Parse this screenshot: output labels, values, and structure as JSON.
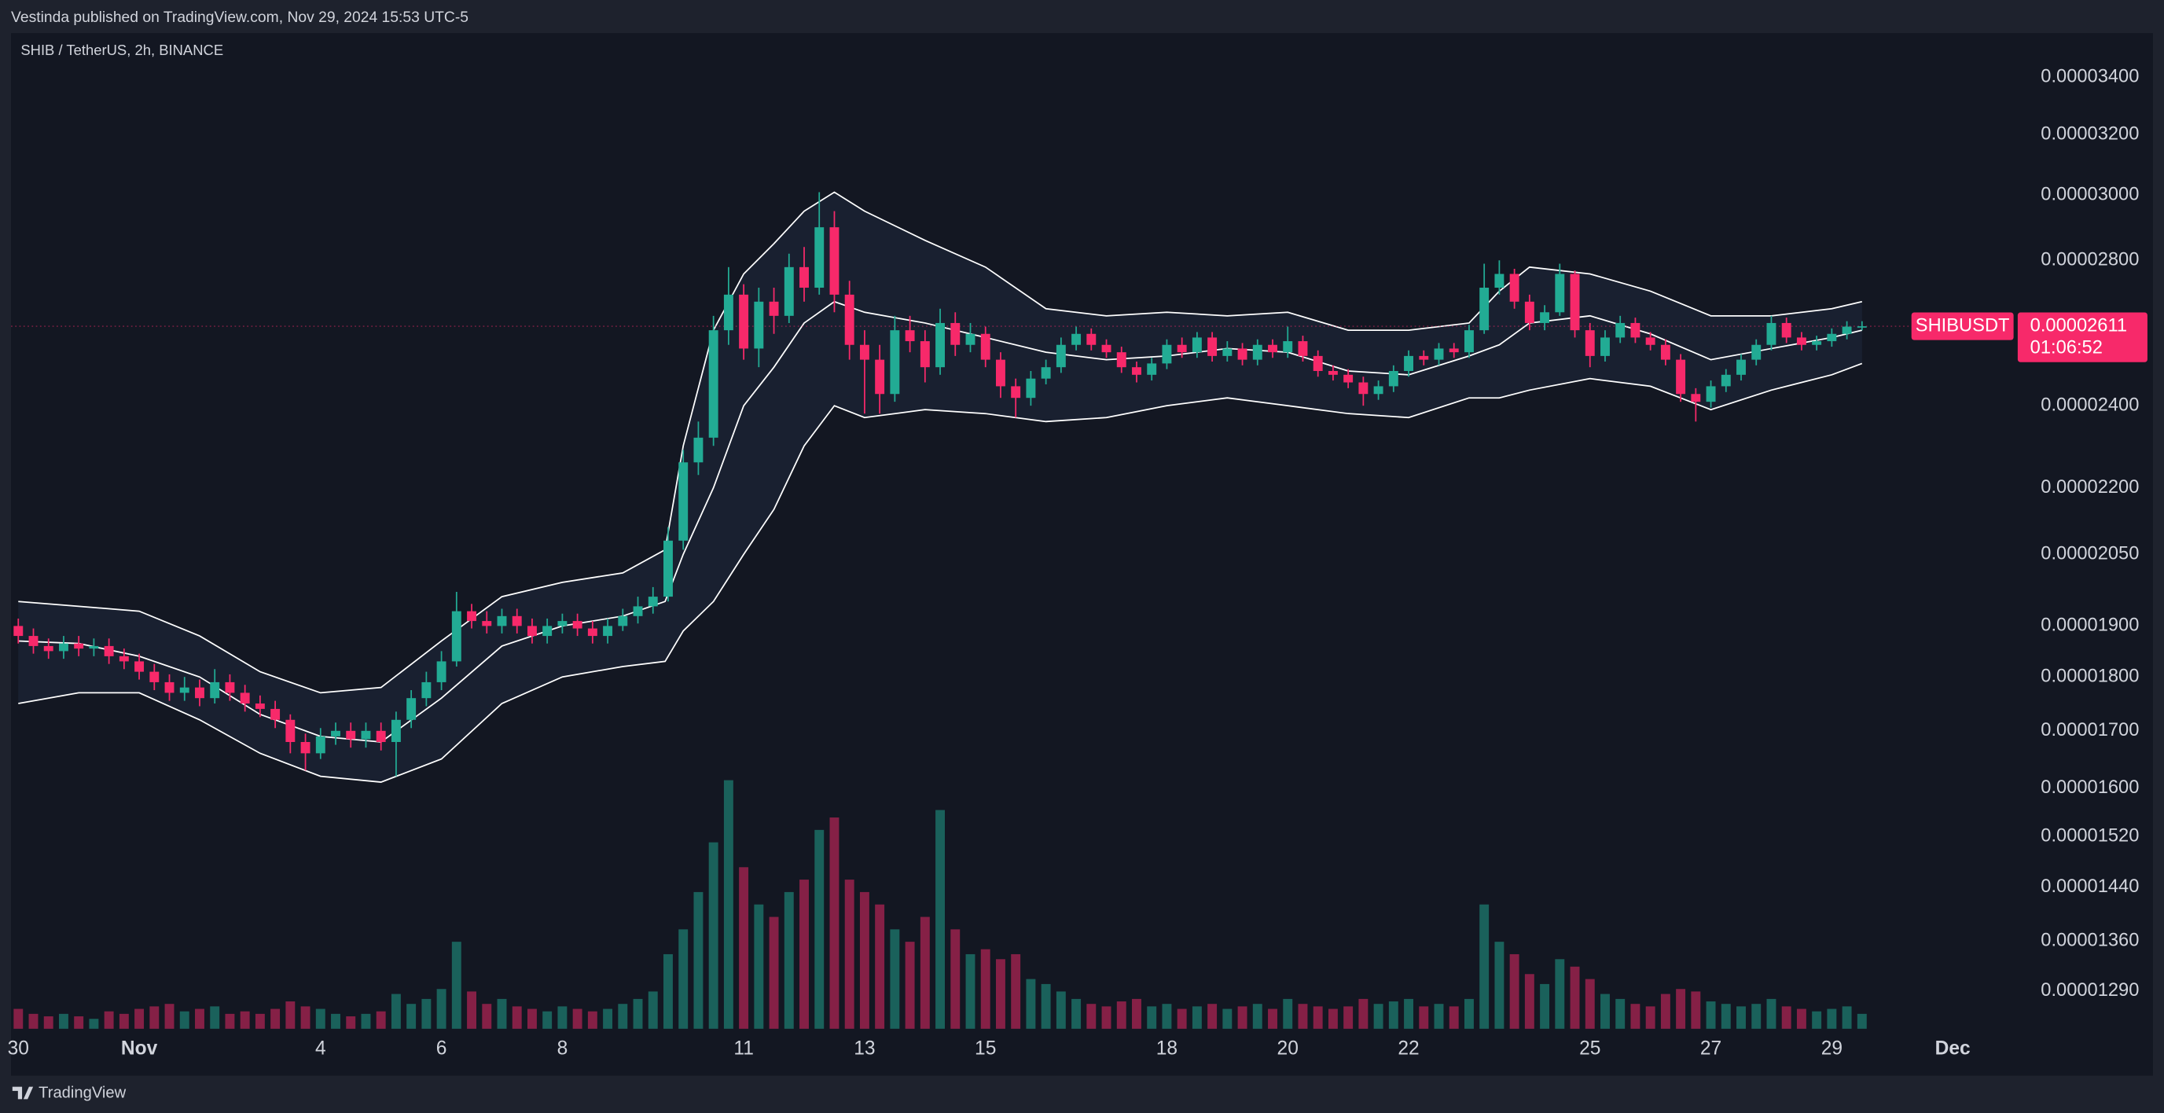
{
  "header": {
    "publisher": "Vestinda published on TradingView.com, Nov 29, 2024 15:53 UTC-5"
  },
  "footer": {
    "logo": "TradingView"
  },
  "chart_data": {
    "type": "candlestick",
    "title": "SHIB / TetherUS, 2h, BINANCE",
    "log_scale": true,
    "up_color": "#22ab94",
    "down_color": "#f7296a",
    "band_color": "#ffffff",
    "xlim": [
      -2.12,
      31.03
    ],
    "xticks": [
      {
        "value": -2,
        "label": "30"
      },
      {
        "value": 0,
        "label": "Nov"
      },
      {
        "value": 3,
        "label": "4"
      },
      {
        "value": 5,
        "label": "6"
      },
      {
        "value": 7,
        "label": "8"
      },
      {
        "value": 10,
        "label": "11"
      },
      {
        "value": 12,
        "label": "13"
      },
      {
        "value": 14,
        "label": "15"
      },
      {
        "value": 17,
        "label": "18"
      },
      {
        "value": 19,
        "label": "20"
      },
      {
        "value": 21,
        "label": "22"
      },
      {
        "value": 24,
        "label": "25"
      },
      {
        "value": 26,
        "label": "27"
      },
      {
        "value": 28,
        "label": "29"
      },
      {
        "value": 30,
        "label": "Dec"
      }
    ],
    "ylim": [
      1.234e-05,
      3.563e-05
    ],
    "yticks": [
      {
        "value": 3.4e-05,
        "label": "0.00003400"
      },
      {
        "value": 3.2e-05,
        "label": "0.00003200"
      },
      {
        "value": 3e-05,
        "label": "0.00003000"
      },
      {
        "value": 2.8e-05,
        "label": "0.00002800"
      },
      {
        "value": 2.4e-05,
        "label": "0.00002400"
      },
      {
        "value": 2.2e-05,
        "label": "0.00002200"
      },
      {
        "value": 2.05e-05,
        "label": "0.00002050"
      },
      {
        "value": 1.9e-05,
        "label": "0.00001900"
      },
      {
        "value": 1.8e-05,
        "label": "0.00001800"
      },
      {
        "value": 1.7e-05,
        "label": "0.00001700"
      },
      {
        "value": 1.6e-05,
        "label": "0.00001600"
      },
      {
        "value": 1.52e-05,
        "label": "0.00001520"
      },
      {
        "value": 1.44e-05,
        "label": "0.00001440"
      },
      {
        "value": 1.36e-05,
        "label": "0.00001360"
      },
      {
        "value": 1.29e-05,
        "label": "0.00001290"
      }
    ],
    "vlim": [
      0,
      100
    ],
    "last_price": {
      "value": 2.611e-05,
      "label": "0.00002611",
      "symbol": "SHIBUSDT",
      "countdown": "01:06:52"
    },
    "x": [
      -2,
      -1.75,
      -1.5,
      -1.25,
      -1,
      -0.75,
      -0.5,
      -0.25,
      0,
      0.25,
      0.5,
      0.75,
      1,
      1.25,
      1.5,
      1.75,
      2,
      2.25,
      2.5,
      2.75,
      3,
      3.25,
      3.5,
      3.75,
      4,
      4.25,
      4.5,
      4.75,
      5,
      5.25,
      5.5,
      5.75,
      6,
      6.25,
      6.5,
      6.75,
      7,
      7.25,
      7.5,
      7.75,
      8,
      8.25,
      8.5,
      8.75,
      9,
      9.25,
      9.5,
      9.75,
      10,
      10.25,
      10.5,
      10.75,
      11,
      11.25,
      11.5,
      11.75,
      12,
      12.25,
      12.5,
      12.75,
      13,
      13.25,
      13.5,
      13.75,
      14,
      14.25,
      14.5,
      14.75,
      15,
      15.25,
      15.5,
      15.75,
      16,
      16.25,
      16.5,
      16.75,
      17,
      17.25,
      17.5,
      17.75,
      18,
      18.25,
      18.5,
      18.75,
      19,
      19.25,
      19.5,
      19.75,
      20,
      20.25,
      20.5,
      20.75,
      21,
      21.25,
      21.5,
      21.75,
      22,
      22.25,
      22.5,
      22.75,
      23,
      23.25,
      23.5,
      23.75,
      24,
      24.25,
      24.5,
      24.75,
      25,
      25.25,
      25.5,
      25.75,
      26,
      26.25,
      26.5,
      26.75,
      27,
      27.25,
      27.5,
      27.75,
      28,
      28.25,
      28.5
    ],
    "open": [
      1.9e-05,
      1.88e-05,
      1.86e-05,
      1.85e-05,
      1.865e-05,
      1.855e-05,
      1.86e-05,
      1.84e-05,
      1.83e-05,
      1.81e-05,
      1.79e-05,
      1.77e-05,
      1.78e-05,
      1.76e-05,
      1.79e-05,
      1.77e-05,
      1.75e-05,
      1.74e-05,
      1.72e-05,
      1.68e-05,
      1.66e-05,
      1.69e-05,
      1.7e-05,
      1.685e-05,
      1.7e-05,
      1.68e-05,
      1.72e-05,
      1.76e-05,
      1.79e-05,
      1.83e-05,
      1.93e-05,
      1.91e-05,
      1.9e-05,
      1.92e-05,
      1.9e-05,
      1.88e-05,
      1.9e-05,
      1.91e-05,
      1.895e-05,
      1.88e-05,
      1.9e-05,
      1.92e-05,
      1.94e-05,
      1.96e-05,
      2.08e-05,
      2.26e-05,
      2.32e-05,
      2.6e-05,
      2.7e-05,
      2.55e-05,
      2.68e-05,
      2.64e-05,
      2.78e-05,
      2.72e-05,
      2.9e-05,
      2.7e-05,
      2.56e-05,
      2.52e-05,
      2.43e-05,
      2.6e-05,
      2.57e-05,
      2.5e-05,
      2.62e-05,
      2.56e-05,
      2.59e-05,
      2.52e-05,
      2.45e-05,
      2.42e-05,
      2.47e-05,
      2.5e-05,
      2.56e-05,
      2.59e-05,
      2.56e-05,
      2.54e-05,
      2.5e-05,
      2.48e-05,
      2.51e-05,
      2.56e-05,
      2.54e-05,
      2.58e-05,
      2.53e-05,
      2.55e-05,
      2.52e-05,
      2.56e-05,
      2.54e-05,
      2.57e-05,
      2.53e-05,
      2.49e-05,
      2.48e-05,
      2.46e-05,
      2.43e-05,
      2.45e-05,
      2.49e-05,
      2.53e-05,
      2.52e-05,
      2.55e-05,
      2.54e-05,
      2.6e-05,
      2.72e-05,
      2.76e-05,
      2.68e-05,
      2.62e-05,
      2.65e-05,
      2.76e-05,
      2.6e-05,
      2.53e-05,
      2.58e-05,
      2.62e-05,
      2.58e-05,
      2.56e-05,
      2.52e-05,
      2.43e-05,
      2.41e-05,
      2.45e-05,
      2.48e-05,
      2.52e-05,
      2.56e-05,
      2.62e-05,
      2.58e-05,
      2.56e-05,
      2.57e-05,
      2.59e-05,
      2.61e-05
    ],
    "high": [
      1.915e-05,
      1.895e-05,
      1.875e-05,
      1.88e-05,
      1.88e-05,
      1.875e-05,
      1.875e-05,
      1.855e-05,
      1.845e-05,
      1.825e-05,
      1.805e-05,
      1.8e-05,
      1.795e-05,
      1.815e-05,
      1.805e-05,
      1.785e-05,
      1.765e-05,
      1.755e-05,
      1.73e-05,
      1.695e-05,
      1.705e-05,
      1.715e-05,
      1.715e-05,
      1.715e-05,
      1.715e-05,
      1.735e-05,
      1.775e-05,
      1.81e-05,
      1.85e-05,
      1.97e-05,
      1.945e-05,
      1.93e-05,
      1.935e-05,
      1.935e-05,
      1.915e-05,
      1.915e-05,
      1.925e-05,
      1.925e-05,
      1.91e-05,
      1.915e-05,
      1.935e-05,
      1.96e-05,
      1.98e-05,
      2.11e-05,
      2.29e-05,
      2.36e-05,
      2.64e-05,
      2.78e-05,
      2.73e-05,
      2.72e-05,
      2.72e-05,
      2.82e-05,
      2.84e-05,
      3.01e-05,
      2.95e-05,
      2.74e-05,
      2.6e-05,
      2.56e-05,
      2.64e-05,
      2.64e-05,
      2.6e-05,
      2.66e-05,
      2.65e-05,
      2.62e-05,
      2.61e-05,
      2.54e-05,
      2.47e-05,
      2.49e-05,
      2.52e-05,
      2.58e-05,
      2.61e-05,
      2.605e-05,
      2.575e-05,
      2.555e-05,
      2.515e-05,
      2.525e-05,
      2.575e-05,
      2.58e-05,
      2.595e-05,
      2.595e-05,
      2.57e-05,
      2.565e-05,
      2.575e-05,
      2.575e-05,
      2.61e-05,
      2.585e-05,
      2.545e-05,
      2.505e-05,
      2.495e-05,
      2.475e-05,
      2.465e-05,
      2.505e-05,
      2.545e-05,
      2.545e-05,
      2.565e-05,
      2.565e-05,
      2.615e-05,
      2.79e-05,
      2.8e-05,
      2.775e-05,
      2.7e-05,
      2.67e-05,
      2.79e-05,
      2.77e-05,
      2.62e-05,
      2.6e-05,
      2.64e-05,
      2.635e-05,
      2.595e-05,
      2.575e-05,
      2.535e-05,
      2.445e-05,
      2.465e-05,
      2.495e-05,
      2.535e-05,
      2.575e-05,
      2.64e-05,
      2.635e-05,
      2.595e-05,
      2.585e-05,
      2.605e-05,
      2.625e-05,
      2.625e-05
    ],
    "low": [
      1.865e-05,
      1.845e-05,
      1.835e-05,
      1.835e-05,
      1.84e-05,
      1.84e-05,
      1.825e-05,
      1.815e-05,
      1.795e-05,
      1.775e-05,
      1.755e-05,
      1.755e-05,
      1.745e-05,
      1.75e-05,
      1.755e-05,
      1.735e-05,
      1.725e-05,
      1.705e-05,
      1.66e-05,
      1.63e-05,
      1.65e-05,
      1.675e-05,
      1.67e-05,
      1.67e-05,
      1.665e-05,
      1.62e-05,
      1.705e-05,
      1.745e-05,
      1.775e-05,
      1.82e-05,
      1.895e-05,
      1.885e-05,
      1.885e-05,
      1.885e-05,
      1.865e-05,
      1.865e-05,
      1.885e-05,
      1.88e-05,
      1.865e-05,
      1.865e-05,
      1.89e-05,
      1.905e-05,
      1.925e-05,
      1.95e-05,
      2.06e-05,
      2.23e-05,
      2.3e-05,
      2.56e-05,
      2.52e-05,
      2.5e-05,
      2.59e-05,
      2.62e-05,
      2.68e-05,
      2.7e-05,
      2.65e-05,
      2.52e-05,
      2.38e-05,
      2.38e-05,
      2.41e-05,
      2.54e-05,
      2.46e-05,
      2.48e-05,
      2.53e-05,
      2.54e-05,
      2.5e-05,
      2.42e-05,
      2.37e-05,
      2.4e-05,
      2.455e-05,
      2.485e-05,
      2.545e-05,
      2.545e-05,
      2.525e-05,
      2.485e-05,
      2.46e-05,
      2.465e-05,
      2.495e-05,
      2.525e-05,
      2.525e-05,
      2.515e-05,
      2.515e-05,
      2.505e-05,
      2.505e-05,
      2.525e-05,
      2.525e-05,
      2.515e-05,
      2.475e-05,
      2.465e-05,
      2.445e-05,
      2.4e-05,
      2.415e-05,
      2.435e-05,
      2.475e-05,
      2.505e-05,
      2.505e-05,
      2.525e-05,
      2.525e-05,
      2.59e-05,
      2.7e-05,
      2.66e-05,
      2.6e-05,
      2.6e-05,
      2.64e-05,
      2.58e-05,
      2.5e-05,
      2.515e-05,
      2.565e-05,
      2.565e-05,
      2.545e-05,
      2.505e-05,
      2.41e-05,
      2.36e-05,
      2.395e-05,
      2.435e-05,
      2.465e-05,
      2.505e-05,
      2.545e-05,
      2.565e-05,
      2.545e-05,
      2.545e-05,
      2.555e-05,
      2.575e-05,
      2.6e-05
    ],
    "close": [
      1.88e-05,
      1.86e-05,
      1.85e-05,
      1.865e-05,
      1.855e-05,
      1.86e-05,
      1.84e-05,
      1.83e-05,
      1.81e-05,
      1.79e-05,
      1.77e-05,
      1.78e-05,
      1.76e-05,
      1.79e-05,
      1.77e-05,
      1.75e-05,
      1.74e-05,
      1.72e-05,
      1.68e-05,
      1.66e-05,
      1.69e-05,
      1.7e-05,
      1.685e-05,
      1.7e-05,
      1.68e-05,
      1.72e-05,
      1.76e-05,
      1.79e-05,
      1.83e-05,
      1.93e-05,
      1.91e-05,
      1.9e-05,
      1.92e-05,
      1.9e-05,
      1.88e-05,
      1.9e-05,
      1.91e-05,
      1.895e-05,
      1.88e-05,
      1.9e-05,
      1.92e-05,
      1.94e-05,
      1.96e-05,
      2.08e-05,
      2.26e-05,
      2.32e-05,
      2.6e-05,
      2.7e-05,
      2.55e-05,
      2.68e-05,
      2.64e-05,
      2.78e-05,
      2.72e-05,
      2.9e-05,
      2.7e-05,
      2.56e-05,
      2.52e-05,
      2.43e-05,
      2.6e-05,
      2.57e-05,
      2.5e-05,
      2.62e-05,
      2.56e-05,
      2.59e-05,
      2.52e-05,
      2.45e-05,
      2.42e-05,
      2.47e-05,
      2.5e-05,
      2.56e-05,
      2.59e-05,
      2.56e-05,
      2.54e-05,
      2.5e-05,
      2.48e-05,
      2.51e-05,
      2.56e-05,
      2.54e-05,
      2.58e-05,
      2.53e-05,
      2.55e-05,
      2.52e-05,
      2.56e-05,
      2.54e-05,
      2.57e-05,
      2.53e-05,
      2.49e-05,
      2.48e-05,
      2.46e-05,
      2.43e-05,
      2.45e-05,
      2.49e-05,
      2.53e-05,
      2.52e-05,
      2.55e-05,
      2.54e-05,
      2.6e-05,
      2.72e-05,
      2.76e-05,
      2.68e-05,
      2.62e-05,
      2.65e-05,
      2.76e-05,
      2.6e-05,
      2.53e-05,
      2.58e-05,
      2.62e-05,
      2.58e-05,
      2.56e-05,
      2.52e-05,
      2.43e-05,
      2.41e-05,
      2.45e-05,
      2.48e-05,
      2.52e-05,
      2.56e-05,
      2.62e-05,
      2.58e-05,
      2.56e-05,
      2.57e-05,
      2.59e-05,
      2.61e-05,
      2.611e-05
    ],
    "volume": [
      8,
      6,
      5,
      6,
      5,
      4,
      7,
      6,
      8,
      9,
      10,
      7,
      8,
      9,
      6,
      7,
      6,
      8,
      11,
      9,
      8,
      6,
      5,
      6,
      7,
      14,
      10,
      12,
      16,
      35,
      15,
      10,
      12,
      9,
      8,
      7,
      9,
      8,
      7,
      8,
      10,
      12,
      15,
      30,
      40,
      55,
      75,
      100,
      65,
      50,
      45,
      55,
      60,
      80,
      85,
      60,
      55,
      50,
      40,
      35,
      45,
      88,
      40,
      30,
      32,
      28,
      30,
      20,
      18,
      15,
      12,
      10,
      9,
      11,
      12,
      9,
      10,
      8,
      9,
      10,
      8,
      9,
      10,
      8,
      12,
      10,
      9,
      8,
      9,
      12,
      10,
      11,
      12,
      9,
      10,
      9,
      12,
      50,
      35,
      30,
      22,
      18,
      28,
      25,
      20,
      14,
      12,
      10,
      9,
      14,
      16,
      15,
      11,
      10,
      9,
      10,
      12,
      9,
      8,
      7,
      8,
      9,
      6
    ],
    "bollinger": {
      "x": [
        -2,
        -1,
        0,
        1,
        2,
        3,
        4,
        5,
        6,
        7,
        8,
        8.7,
        9,
        9.5,
        10,
        10.5,
        11,
        11.5,
        12,
        13,
        14,
        15,
        16,
        17,
        18,
        19,
        20,
        21,
        22,
        22.5,
        23,
        24,
        25,
        26,
        27,
        28,
        28.5
      ],
      "upper": [
        1.95e-05,
        1.94e-05,
        1.93e-05,
        1.88e-05,
        1.81e-05,
        1.77e-05,
        1.78e-05,
        1.87e-05,
        1.96e-05,
        1.99e-05,
        2.01e-05,
        2.06e-05,
        2.3e-05,
        2.6e-05,
        2.76e-05,
        2.85e-05,
        2.95e-05,
        3.01e-05,
        2.95e-05,
        2.86e-05,
        2.78e-05,
        2.66e-05,
        2.64e-05,
        2.65e-05,
        2.64e-05,
        2.65e-05,
        2.6e-05,
        2.6e-05,
        2.62e-05,
        2.71e-05,
        2.78e-05,
        2.76e-05,
        2.71e-05,
        2.64e-05,
        2.64e-05,
        2.66e-05,
        2.68e-05
      ],
      "basis": [
        1.87e-05,
        1.865e-05,
        1.84e-05,
        1.8e-05,
        1.73e-05,
        1.69e-05,
        1.68e-05,
        1.76e-05,
        1.86e-05,
        1.9e-05,
        1.92e-05,
        1.95e-05,
        2.05e-05,
        2.2e-05,
        2.4e-05,
        2.5e-05,
        2.62e-05,
        2.68e-05,
        2.65e-05,
        2.62e-05,
        2.58e-05,
        2.54e-05,
        2.52e-05,
        2.53e-05,
        2.55e-05,
        2.54e-05,
        2.49e-05,
        2.48e-05,
        2.53e-05,
        2.56e-05,
        2.62e-05,
        2.64e-05,
        2.59e-05,
        2.52e-05,
        2.55e-05,
        2.58e-05,
        2.6e-05
      ],
      "lower": [
        1.75e-05,
        1.77e-05,
        1.77e-05,
        1.72e-05,
        1.66e-05,
        1.62e-05,
        1.61e-05,
        1.65e-05,
        1.75e-05,
        1.8e-05,
        1.82e-05,
        1.83e-05,
        1.89e-05,
        1.95e-05,
        2.05e-05,
        2.15e-05,
        2.3e-05,
        2.4e-05,
        2.37e-05,
        2.39e-05,
        2.38e-05,
        2.36e-05,
        2.37e-05,
        2.4e-05,
        2.42e-05,
        2.4e-05,
        2.38e-05,
        2.37e-05,
        2.42e-05,
        2.42e-05,
        2.44e-05,
        2.47e-05,
        2.45e-05,
        2.39e-05,
        2.44e-05,
        2.48e-05,
        2.51e-05
      ]
    }
  }
}
